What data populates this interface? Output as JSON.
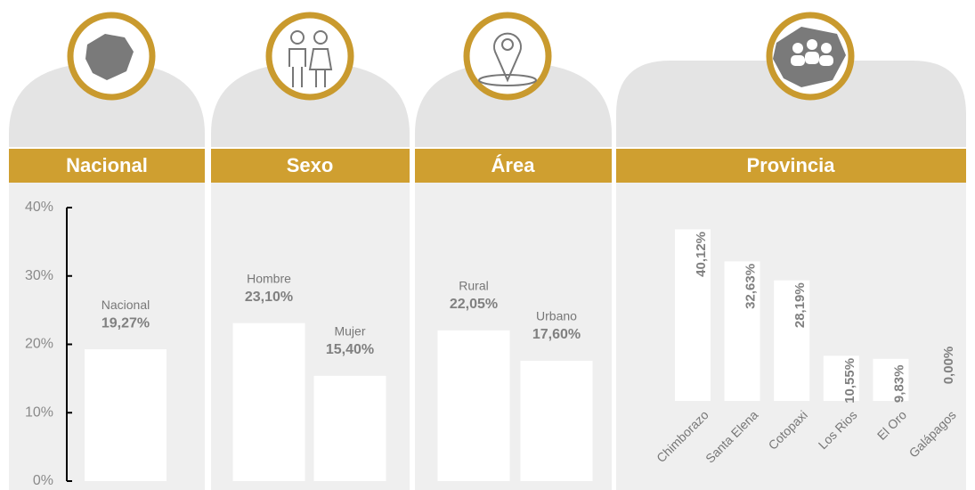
{
  "chart_data": [
    {
      "type": "bar",
      "title": "Nacional",
      "categories": [
        "Nacional"
      ],
      "values": [
        19.27
      ],
      "value_labels": [
        "19,27%"
      ],
      "ylim": [
        0,
        40
      ],
      "yticks": [
        {
          "value": 0,
          "label": "0%"
        },
        {
          "value": 10,
          "label": "10%"
        },
        {
          "value": 20,
          "label": "20%"
        },
        {
          "value": 30,
          "label": "30%"
        },
        {
          "value": 40,
          "label": "40%"
        }
      ],
      "color": "#ffffff"
    },
    {
      "type": "bar",
      "title": "Sexo",
      "categories": [
        "Hombre",
        "Mujer"
      ],
      "values": [
        23.1,
        15.4
      ],
      "value_labels": [
        "23,10%",
        "15,40%"
      ],
      "ylim": [
        0,
        40
      ],
      "color": "#ffffff"
    },
    {
      "type": "bar",
      "title": "Área",
      "categories": [
        "Rural",
        "Urbano"
      ],
      "values": [
        22.05,
        17.6
      ],
      "value_labels": [
        "22,05%",
        "17,60%"
      ],
      "ylim": [
        0,
        40
      ],
      "color": "#ffffff"
    },
    {
      "type": "bar",
      "title": "Provincia",
      "categories": [
        "Chimborazo",
        "Santa Elena",
        "Cotopaxi",
        "Los Rios",
        "El Oro",
        "Galápagos"
      ],
      "values": [
        40.12,
        32.63,
        28.19,
        10.55,
        9.83,
        0.0
      ],
      "value_labels": [
        "40,12%",
        "32,63%",
        "28,19%",
        "10,55%",
        "9,83%",
        "0,00%"
      ],
      "ylim": [
        0,
        50
      ],
      "color": "#ffffff"
    }
  ]
}
